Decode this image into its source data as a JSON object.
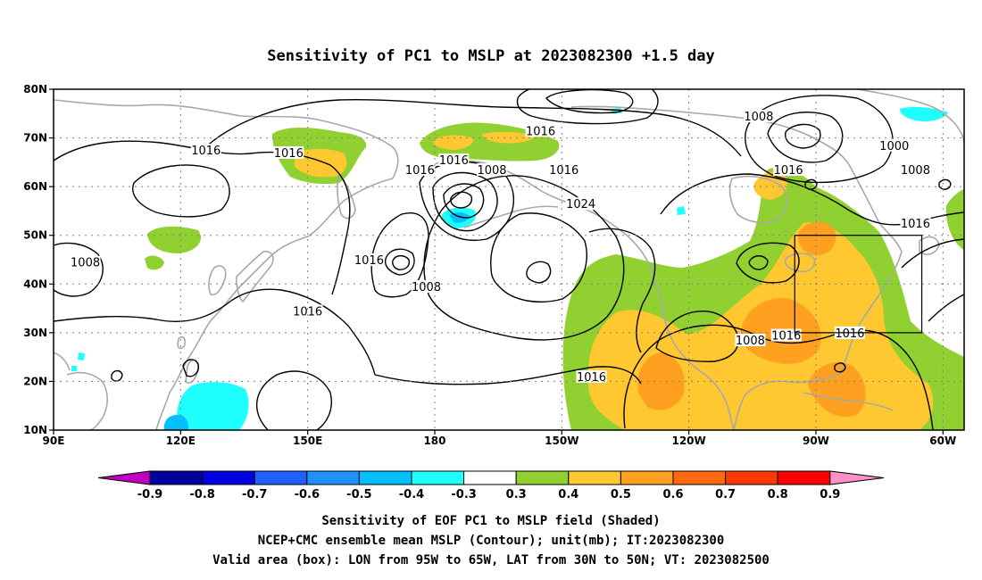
{
  "title": "Sensitivity of PC1 to MSLP at 2023082300 +1.5 day",
  "map": {
    "lon_range": [
      90,
      305
    ],
    "lat_range": [
      10,
      80
    ],
    "lat_ticks": [
      {
        "lat": 80,
        "label": "80N"
      },
      {
        "lat": 70,
        "label": "70N"
      },
      {
        "lat": 60,
        "label": "60N"
      },
      {
        "lat": 50,
        "label": "50N"
      },
      {
        "lat": 40,
        "label": "40N"
      },
      {
        "lat": 30,
        "label": "30N"
      },
      {
        "lat": 20,
        "label": "20N"
      },
      {
        "lat": 10,
        "label": "10N"
      }
    ],
    "lon_ticks": [
      {
        "lon": 90,
        "label": "90E"
      },
      {
        "lon": 120,
        "label": "120E"
      },
      {
        "lon": 150,
        "label": "150E"
      },
      {
        "lon": 180,
        "label": "180"
      },
      {
        "lon": 210,
        "label": "150W"
      },
      {
        "lon": 240,
        "label": "120W"
      },
      {
        "lon": 270,
        "label": "90W"
      },
      {
        "lon": 300,
        "label": "60W"
      }
    ],
    "grid": true,
    "valid_box": {
      "lon_min": 265,
      "lon_max": 295,
      "lat_min": 30,
      "lat_max": 50
    },
    "colors": {
      "coast": "#a8a8a8",
      "contour": "#000000",
      "grid": "#808080"
    },
    "contour_labels": [
      {
        "text": "1016",
        "lon": 126,
        "lat": 67.5
      },
      {
        "text": "1016",
        "lon": 145.5,
        "lat": 67
      },
      {
        "text": "1016",
        "lon": 205,
        "lat": 71.5
      },
      {
        "text": "1016",
        "lon": 184.5,
        "lat": 65.5
      },
      {
        "text": "1008",
        "lon": 193.5,
        "lat": 63.5
      },
      {
        "text": "1016",
        "lon": 210.5,
        "lat": 63.5
      },
      {
        "text": "1024",
        "lon": 214.5,
        "lat": 56.5
      },
      {
        "text": "1016",
        "lon": 176.5,
        "lat": 63.5
      },
      {
        "text": "1008",
        "lon": 97.5,
        "lat": 44.5
      },
      {
        "text": "1016",
        "lon": 164.5,
        "lat": 45
      },
      {
        "text": "1008",
        "lon": 178,
        "lat": 39.5
      },
      {
        "text": "1016",
        "lon": 150,
        "lat": 34.5
      },
      {
        "text": "1008",
        "lon": 256.5,
        "lat": 74.5
      },
      {
        "text": "1000",
        "lon": 288.5,
        "lat": 68.5
      },
      {
        "text": "1016",
        "lon": 263.5,
        "lat": 63.5
      },
      {
        "text": "1008",
        "lon": 293.5,
        "lat": 63.5
      },
      {
        "text": "1016",
        "lon": 293.5,
        "lat": 52.5
      },
      {
        "text": "1008",
        "lon": 254.5,
        "lat": 28.5
      },
      {
        "text": "1016",
        "lon": 263,
        "lat": 29.5
      },
      {
        "text": "1016",
        "lon": 278,
        "lat": 30
      },
      {
        "text": "1016",
        "lon": 217,
        "lat": 21
      }
    ]
  },
  "colorbar": {
    "levels": [
      "-0.9",
      "-0.8",
      "-0.7",
      "-0.6",
      "-0.5",
      "-0.4",
      "-0.3",
      "0.3",
      "0.4",
      "0.5",
      "0.6",
      "0.7",
      "0.8",
      "0.9"
    ],
    "low_end_color": "#c000c0",
    "high_end_color": "#ff90c8",
    "colors": [
      "#0000a0",
      "#0000e0",
      "#2060ff",
      "#2090ff",
      "#00c0ff",
      "#20ffff",
      "#ffffff",
      "#90d030",
      "#ffc830",
      "#ffa020",
      "#ff6a10",
      "#ff3a00",
      "#ff0000"
    ]
  },
  "captions": [
    "Sensitivity of EOF PC1 to MSLP field (Shaded)",
    "NCEP+CMC ensemble mean MSLP (Contour); unit(mb); IT:2023082300",
    "Valid area (box): LON from 95W to 65W, LAT from 30N to 50N; VT: 2023082500"
  ]
}
